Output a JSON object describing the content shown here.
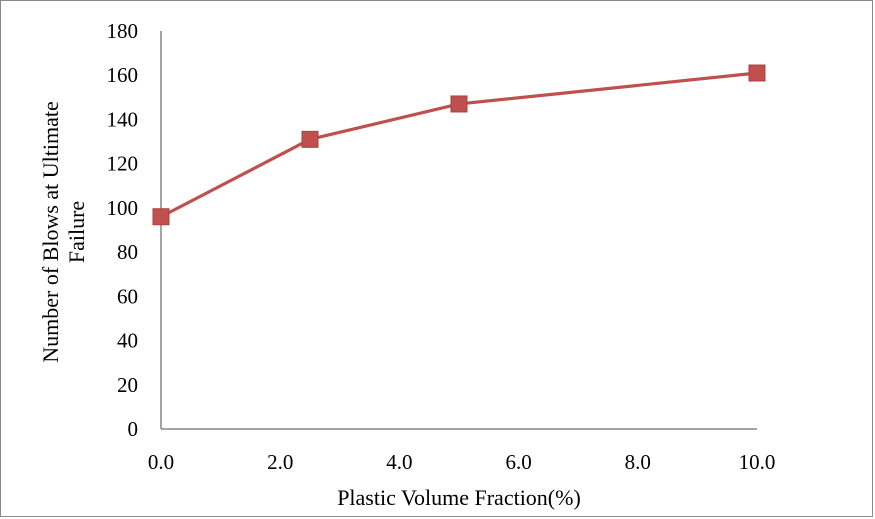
{
  "chart_data": {
    "type": "line",
    "title": "",
    "xlabel": "Plastic Volume Fraction(%)",
    "ylabel_lines": [
      "Number of Blows at Ultimate",
      "Failure"
    ],
    "xlim": [
      0,
      10
    ],
    "ylim": [
      0,
      180
    ],
    "x_ticks": [
      "0.0",
      "2.0",
      "4.0",
      "6.0",
      "8.0",
      "10.0"
    ],
    "y_ticks": [
      "0",
      "20",
      "40",
      "60",
      "80",
      "100",
      "120",
      "140",
      "160",
      "180"
    ],
    "grid": false,
    "series": [
      {
        "x": [
          0,
          2.5,
          5,
          10
        ],
        "y": [
          96,
          131,
          147,
          161
        ],
        "color": "#C0504D",
        "marker": "square"
      }
    ]
  }
}
